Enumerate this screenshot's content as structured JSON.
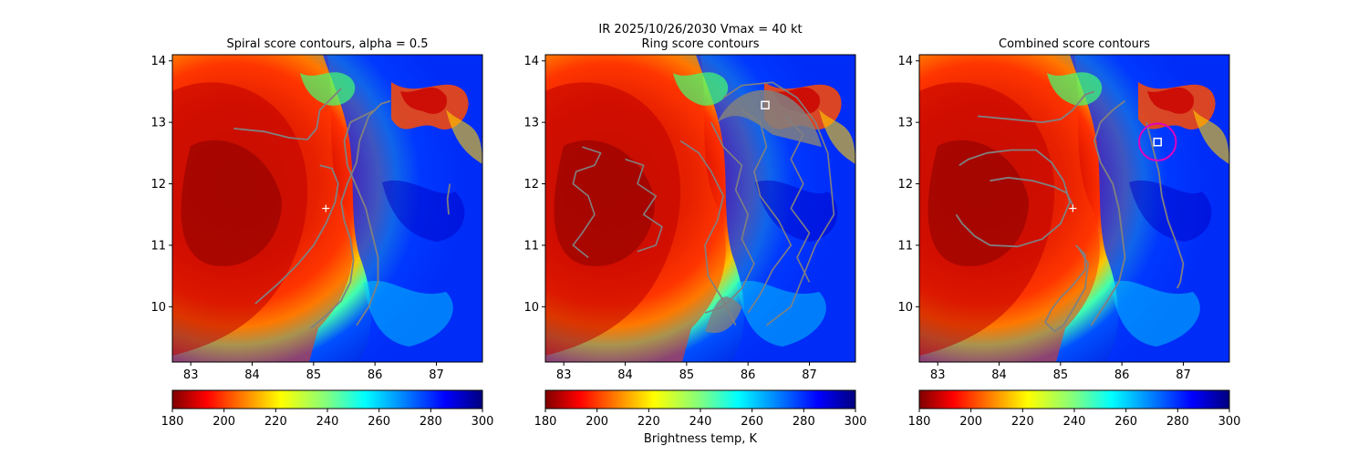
{
  "suptitle": {
    "line1": "IR  2025/10/26/2030    Vmax = 40 kt"
  },
  "chart_data": [
    {
      "type": "heatmap",
      "title": "Spiral score contours, alpha =  0.5",
      "xlim": [
        82.7,
        87.75
      ],
      "ylim": [
        9.1,
        14.1
      ],
      "xticks": [
        83,
        84,
        85,
        86,
        87
      ],
      "yticks": [
        10,
        11,
        12,
        13,
        14
      ],
      "colormap": "jet_r",
      "color_range": [
        180,
        300
      ],
      "colorbar_ticks": [
        180,
        200,
        220,
        240,
        260,
        280,
        300
      ],
      "center_marker": {
        "x": 85.2,
        "y": 11.6,
        "symbol": "+"
      },
      "contours": [
        [
          [
            83.7,
            12.9
          ],
          [
            84.2,
            12.85
          ],
          [
            84.6,
            12.75
          ],
          [
            84.9,
            12.72
          ],
          [
            85.05,
            12.9
          ],
          [
            85.1,
            13.2
          ],
          [
            85.3,
            13.4
          ],
          [
            85.45,
            13.55
          ]
        ],
        [
          [
            85.1,
            12.3
          ],
          [
            85.3,
            12.25
          ],
          [
            85.4,
            12.0
          ],
          [
            85.35,
            11.7
          ],
          [
            85.2,
            11.35
          ],
          [
            85.0,
            11.0
          ],
          [
            84.75,
            10.7
          ],
          [
            84.45,
            10.4
          ],
          [
            84.05,
            10.05
          ]
        ],
        [
          [
            84.95,
            9.65
          ],
          [
            85.2,
            9.85
          ],
          [
            85.45,
            10.1
          ],
          [
            85.6,
            10.4
          ],
          [
            85.65,
            10.75
          ],
          [
            85.6,
            11.1
          ],
          [
            85.5,
            11.4
          ],
          [
            85.45,
            11.7
          ],
          [
            85.55,
            12.0
          ],
          [
            85.7,
            12.35
          ],
          [
            85.75,
            12.7
          ],
          [
            85.9,
            13.1
          ],
          [
            86.1,
            13.3
          ],
          [
            86.25,
            13.35
          ]
        ],
        [
          [
            85.7,
            9.7
          ],
          [
            85.9,
            10.0
          ],
          [
            86.05,
            10.4
          ],
          [
            86.05,
            10.8
          ],
          [
            85.95,
            11.2
          ],
          [
            85.85,
            11.6
          ],
          [
            85.7,
            11.95
          ],
          [
            85.55,
            12.3
          ],
          [
            85.5,
            12.7
          ],
          [
            85.6,
            13.0
          ],
          [
            85.8,
            13.1
          ],
          [
            86.0,
            13.2
          ]
        ],
        [
          [
            87.2,
            11.5
          ],
          [
            87.18,
            11.75
          ],
          [
            87.22,
            12.0
          ]
        ]
      ]
    },
    {
      "type": "heatmap",
      "title": "Ring score contours",
      "xlim": [
        82.7,
        87.75
      ],
      "ylim": [
        9.1,
        14.1
      ],
      "xticks": [
        83,
        84,
        85,
        86,
        87
      ],
      "yticks": [
        10,
        11,
        12,
        13,
        14
      ],
      "xlabel": "Brightness temp, K",
      "colormap": "jet_r",
      "color_range": [
        180,
        300
      ],
      "colorbar_ticks": [
        180,
        200,
        220,
        240,
        260,
        280,
        300
      ],
      "square_marker": {
        "x": 86.28,
        "y": 13.28
      },
      "contours": [
        [
          [
            83.3,
            12.6
          ],
          [
            83.6,
            12.5
          ],
          [
            83.5,
            12.3
          ],
          [
            83.2,
            12.2
          ],
          [
            83.15,
            12.0
          ],
          [
            83.4,
            11.8
          ],
          [
            83.5,
            11.5
          ],
          [
            83.3,
            11.2
          ],
          [
            83.15,
            11.0
          ],
          [
            83.4,
            10.8
          ]
        ],
        [
          [
            84.0,
            12.4
          ],
          [
            84.3,
            12.3
          ],
          [
            84.2,
            12.0
          ],
          [
            84.5,
            11.8
          ],
          [
            84.3,
            11.5
          ],
          [
            84.6,
            11.3
          ],
          [
            84.5,
            11.0
          ],
          [
            84.2,
            10.9
          ]
        ],
        [
          [
            84.9,
            12.7
          ],
          [
            85.2,
            12.5
          ],
          [
            85.4,
            12.2
          ],
          [
            85.6,
            11.8
          ],
          [
            85.5,
            11.4
          ],
          [
            85.3,
            11.0
          ],
          [
            85.35,
            10.5
          ],
          [
            85.6,
            10.1
          ],
          [
            85.8,
            9.7
          ]
        ],
        [
          [
            85.6,
            13.4
          ],
          [
            85.9,
            13.6
          ],
          [
            86.4,
            13.65
          ],
          [
            86.8,
            13.4
          ],
          [
            87.1,
            13.0
          ],
          [
            87.3,
            12.5
          ],
          [
            87.35,
            12.0
          ],
          [
            87.4,
            11.5
          ],
          [
            87.1,
            11.0
          ],
          [
            86.9,
            10.5
          ],
          [
            86.7,
            10.0
          ],
          [
            86.3,
            9.7
          ]
        ],
        [
          [
            85.9,
            13.2
          ],
          [
            86.2,
            13.0
          ],
          [
            86.3,
            12.6
          ],
          [
            86.1,
            12.2
          ],
          [
            86.2,
            11.8
          ],
          [
            86.5,
            11.4
          ],
          [
            86.7,
            11.0
          ],
          [
            86.4,
            10.6
          ],
          [
            86.2,
            10.2
          ],
          [
            86.0,
            9.9
          ]
        ],
        [
          [
            85.4,
            13.0
          ],
          [
            85.6,
            12.6
          ],
          [
            85.9,
            12.3
          ],
          [
            85.8,
            11.9
          ],
          [
            86.0,
            11.5
          ],
          [
            85.9,
            11.1
          ],
          [
            86.1,
            10.7
          ],
          [
            85.9,
            10.3
          ],
          [
            85.6,
            10.0
          ],
          [
            85.3,
            9.9
          ]
        ],
        [
          [
            86.6,
            13.1
          ],
          [
            86.9,
            12.8
          ],
          [
            86.7,
            12.4
          ],
          [
            86.9,
            12.0
          ],
          [
            86.7,
            11.6
          ],
          [
            87.0,
            11.2
          ],
          [
            86.8,
            10.8
          ],
          [
            87.0,
            10.4
          ]
        ]
      ]
    },
    {
      "type": "heatmap",
      "title": "Combined score contours",
      "xlim": [
        82.7,
        87.75
      ],
      "ylim": [
        9.1,
        14.1
      ],
      "xticks": [
        83,
        84,
        85,
        86,
        87
      ],
      "yticks": [
        10,
        11,
        12,
        13,
        14
      ],
      "colormap": "jet_r",
      "color_range": [
        180,
        300
      ],
      "colorbar_ticks": [
        180,
        200,
        220,
        240,
        260,
        280,
        300
      ],
      "center_marker": {
        "x": 85.2,
        "y": 11.6,
        "symbol": "+"
      },
      "square_marker": {
        "x": 86.58,
        "y": 12.68
      },
      "circle": {
        "x": 86.58,
        "y": 12.68,
        "r": 0.3
      },
      "contours": [
        [
          [
            83.85,
            12.05
          ],
          [
            84.15,
            12.1
          ],
          [
            84.55,
            12.05
          ],
          [
            84.9,
            11.95
          ],
          [
            85.1,
            11.85
          ],
          [
            85.2,
            11.65
          ]
        ],
        [
          [
            83.65,
            13.1
          ],
          [
            84.2,
            13.05
          ],
          [
            84.7,
            13.0
          ],
          [
            85.0,
            13.05
          ],
          [
            85.2,
            13.2
          ],
          [
            85.4,
            13.45
          ],
          [
            85.55,
            13.5
          ]
        ],
        [
          [
            83.35,
            12.3
          ],
          [
            83.5,
            12.4
          ],
          [
            83.8,
            12.5
          ],
          [
            84.2,
            12.55
          ],
          [
            84.6,
            12.55
          ],
          [
            84.85,
            12.35
          ],
          [
            85.05,
            12.05
          ],
          [
            85.15,
            11.7
          ],
          [
            85.0,
            11.35
          ],
          [
            84.7,
            11.1
          ],
          [
            84.3,
            10.98
          ],
          [
            83.85,
            11.0
          ],
          [
            83.6,
            11.15
          ],
          [
            83.4,
            11.35
          ],
          [
            83.3,
            11.5
          ]
        ],
        [
          [
            85.25,
            11.0
          ],
          [
            85.4,
            10.85
          ],
          [
            85.4,
            10.6
          ],
          [
            85.2,
            10.35
          ],
          [
            85.0,
            10.15
          ],
          [
            84.85,
            9.95
          ],
          [
            84.75,
            9.75
          ],
          [
            84.9,
            9.6
          ],
          [
            85.05,
            9.7
          ],
          [
            85.2,
            9.95
          ],
          [
            85.4,
            10.3
          ],
          [
            85.45,
            10.7
          ],
          [
            85.3,
            10.95
          ]
        ],
        [
          [
            85.5,
            9.7
          ],
          [
            85.7,
            10.0
          ],
          [
            85.95,
            10.4
          ],
          [
            86.05,
            10.8
          ],
          [
            86.0,
            11.2
          ],
          [
            85.95,
            11.6
          ],
          [
            85.85,
            12.0
          ],
          [
            85.65,
            12.35
          ],
          [
            85.55,
            12.7
          ],
          [
            85.65,
            13.0
          ],
          [
            85.85,
            13.2
          ],
          [
            86.05,
            13.35
          ]
        ],
        [
          [
            86.4,
            13.0
          ],
          [
            86.5,
            12.6
          ],
          [
            86.6,
            12.2
          ],
          [
            86.65,
            11.8
          ],
          [
            86.75,
            11.4
          ],
          [
            86.9,
            11.0
          ],
          [
            87.0,
            10.7
          ],
          [
            86.95,
            10.4
          ],
          [
            86.9,
            10.3
          ]
        ]
      ]
    }
  ]
}
